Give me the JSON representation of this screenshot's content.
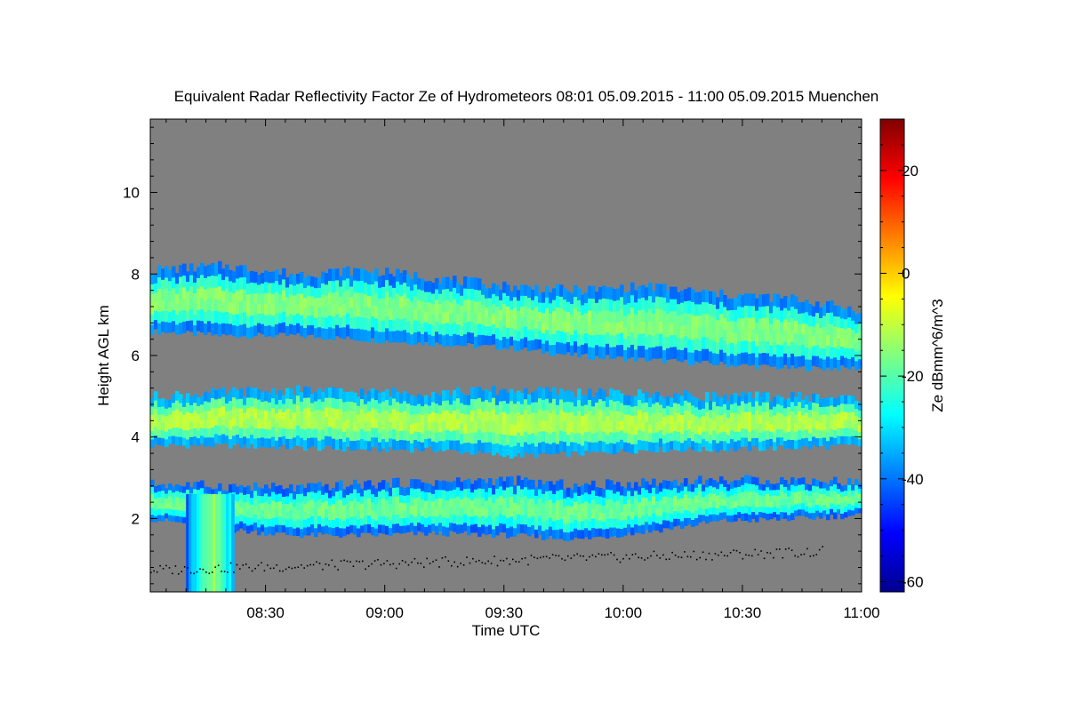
{
  "chart_data": {
    "type": "heatmap",
    "title": "Equivalent Radar Reflectivity Factor Ze of Hydrometeors   08:01 05.09.2015 - 11:00 05.09.2015 Muenchen",
    "xlabel": "Time UTC",
    "ylabel": "Height AGL km",
    "x_ticks": [
      "08:30",
      "09:00",
      "09:30",
      "10:00",
      "10:30",
      "11:00"
    ],
    "x_tick_minutes": [
      30,
      60,
      90,
      120,
      150,
      180
    ],
    "xlim_minutes_after_0800": [
      1,
      180
    ],
    "y_ticks": [
      2,
      4,
      6,
      8,
      10
    ],
    "ylim": [
      0.2,
      11.8
    ],
    "colorbar": {
      "label": "Ze dBmm^6/m^3",
      "ticks": [
        -60,
        -40,
        -20,
        0,
        20
      ],
      "range": [
        -62,
        30
      ],
      "colormap": "jet"
    },
    "background_color": "#808080",
    "layers": [
      {
        "name": "upper",
        "x_start": 1,
        "x_end": 180,
        "bottom": [
          6.6,
          6.5,
          6.5,
          6.4,
          6.3,
          6.2,
          6.0,
          5.9,
          5.8,
          5.7,
          5.7
        ],
        "top": [
          8.1,
          8.2,
          8.0,
          8.1,
          7.9,
          7.7,
          7.6,
          7.7,
          7.5,
          7.4,
          7.1
        ],
        "peak": -12
      },
      {
        "name": "middle",
        "x_start": 1,
        "x_end": 180,
        "bottom": [
          3.8,
          3.8,
          3.75,
          3.7,
          3.7,
          3.55,
          3.6,
          3.7,
          3.7,
          3.75,
          3.8
        ],
        "top": [
          5.0,
          5.1,
          5.15,
          5.1,
          5.1,
          5.15,
          5.1,
          5.05,
          5.0,
          5.0,
          4.95
        ],
        "peak": -8
      },
      {
        "name": "lower",
        "x_start": 1,
        "x_end": 180,
        "bottom": [
          2.0,
          1.75,
          1.6,
          1.6,
          1.65,
          1.6,
          1.5,
          1.7,
          1.95,
          2.0,
          2.1
        ],
        "top": [
          2.85,
          2.8,
          2.75,
          2.85,
          2.9,
          2.95,
          2.8,
          2.9,
          2.95,
          2.95,
          2.9
        ],
        "peak": -14
      }
    ],
    "precip_shaft": {
      "x_start": 10,
      "x_end": 22,
      "bottom": 0.2,
      "top": 2.6,
      "peak": -8
    },
    "cloud_base_points": {
      "x_start": 1,
      "x_end": 170,
      "height_start": 0.75,
      "height_end": 1.2,
      "color": "#000000"
    }
  }
}
